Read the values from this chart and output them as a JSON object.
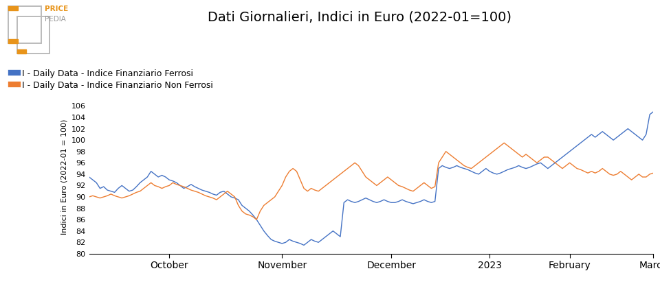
{
  "title": "Dati Giornalieri, Indici in Euro (2022-01=100)",
  "ylabel": "Indici in Euro (2022-01 = 100)",
  "legend_ferrosi": "I - Daily Data - Indice Finanziario Ferrosi",
  "legend_non_ferrosi": "I - Daily Data - Indice Finanziario Non Ferrosi",
  "color_ferrosi": "#4472C4",
  "color_non_ferrosi": "#ED7D31",
  "ylim": [
    80,
    107
  ],
  "yticks": [
    80,
    82,
    84,
    86,
    88,
    90,
    92,
    94,
    96,
    98,
    100,
    102,
    104,
    106
  ],
  "background_color": "#ffffff",
  "ferrosi": [
    93.5,
    93.0,
    92.5,
    91.5,
    91.8,
    91.2,
    91.0,
    90.8,
    91.5,
    92.0,
    91.5,
    91.0,
    91.2,
    91.8,
    92.5,
    93.0,
    93.5,
    94.5,
    94.0,
    93.5,
    93.8,
    93.5,
    93.0,
    92.8,
    92.5,
    92.0,
    91.5,
    91.8,
    92.2,
    91.8,
    91.5,
    91.2,
    91.0,
    90.8,
    90.5,
    90.3,
    90.8,
    91.0,
    90.5,
    90.0,
    89.8,
    89.5,
    88.5,
    88.0,
    87.5,
    86.8,
    86.0,
    85.0,
    84.0,
    83.2,
    82.5,
    82.2,
    82.0,
    81.8,
    82.0,
    82.5,
    82.2,
    82.0,
    81.8,
    81.5,
    82.0,
    82.5,
    82.2,
    82.0,
    82.5,
    83.0,
    83.5,
    84.0,
    83.5,
    83.0,
    89.0,
    89.5,
    89.2,
    89.0,
    89.2,
    89.5,
    89.8,
    89.5,
    89.2,
    89.0,
    89.2,
    89.5,
    89.2,
    89.0,
    89.0,
    89.2,
    89.5,
    89.2,
    89.0,
    88.8,
    89.0,
    89.2,
    89.5,
    89.2,
    89.0,
    89.2,
    95.0,
    95.5,
    95.2,
    95.0,
    95.2,
    95.5,
    95.2,
    95.0,
    94.8,
    94.5,
    94.2,
    94.0,
    94.5,
    95.0,
    94.5,
    94.2,
    94.0,
    94.2,
    94.5,
    94.8,
    95.0,
    95.2,
    95.5,
    95.2,
    95.0,
    95.2,
    95.5,
    95.8,
    96.0,
    95.5,
    95.0,
    95.5,
    96.0,
    96.5,
    97.0,
    97.5,
    98.0,
    98.5,
    99.0,
    99.5,
    100.0,
    100.5,
    101.0,
    100.5,
    101.0,
    101.5,
    101.0,
    100.5,
    100.0,
    100.5,
    101.0,
    101.5,
    102.0,
    101.5,
    101.0,
    100.5,
    100.0,
    101.0,
    104.5,
    105.0
  ],
  "non_ferrosi": [
    90.0,
    90.2,
    90.0,
    89.8,
    90.0,
    90.2,
    90.5,
    90.2,
    90.0,
    89.8,
    90.0,
    90.2,
    90.5,
    90.8,
    91.0,
    91.5,
    92.0,
    92.5,
    92.0,
    91.8,
    91.5,
    91.8,
    92.0,
    92.5,
    92.2,
    92.0,
    91.8,
    91.5,
    91.2,
    91.0,
    90.8,
    90.5,
    90.2,
    90.0,
    89.8,
    89.5,
    90.0,
    90.5,
    91.0,
    90.5,
    90.0,
    88.5,
    87.5,
    87.0,
    86.8,
    86.5,
    86.0,
    87.5,
    88.5,
    89.0,
    89.5,
    90.0,
    91.0,
    92.0,
    93.5,
    94.5,
    95.0,
    94.5,
    93.0,
    91.5,
    91.0,
    91.5,
    91.2,
    91.0,
    91.5,
    92.0,
    92.5,
    93.0,
    93.5,
    94.0,
    94.5,
    95.0,
    95.5,
    96.0,
    95.5,
    94.5,
    93.5,
    93.0,
    92.5,
    92.0,
    92.5,
    93.0,
    93.5,
    93.0,
    92.5,
    92.0,
    91.8,
    91.5,
    91.2,
    91.0,
    91.5,
    92.0,
    92.5,
    92.0,
    91.5,
    91.8,
    96.0,
    97.0,
    98.0,
    97.5,
    97.0,
    96.5,
    96.0,
    95.5,
    95.2,
    95.0,
    95.5,
    96.0,
    96.5,
    97.0,
    97.5,
    98.0,
    98.5,
    99.0,
    99.5,
    99.0,
    98.5,
    98.0,
    97.5,
    97.0,
    97.5,
    97.0,
    96.5,
    96.0,
    96.5,
    97.0,
    97.0,
    96.5,
    96.0,
    95.5,
    95.0,
    95.5,
    96.0,
    95.5,
    95.0,
    94.8,
    94.5,
    94.2,
    94.5,
    94.2,
    94.5,
    95.0,
    94.5,
    94.0,
    93.8,
    94.0,
    94.5,
    94.0,
    93.5,
    93.0,
    93.5,
    94.0,
    93.5,
    93.5,
    94.0,
    94.2
  ],
  "x_tick_labels": [
    "October",
    "November",
    "December",
    "2023",
    "February",
    "March"
  ],
  "x_tick_positions": [
    22,
    53,
    83,
    110,
    132,
    155
  ],
  "logo_orange": "#E8941A",
  "logo_gray": "#999999",
  "logo_gray_light": "#bbbbbb"
}
